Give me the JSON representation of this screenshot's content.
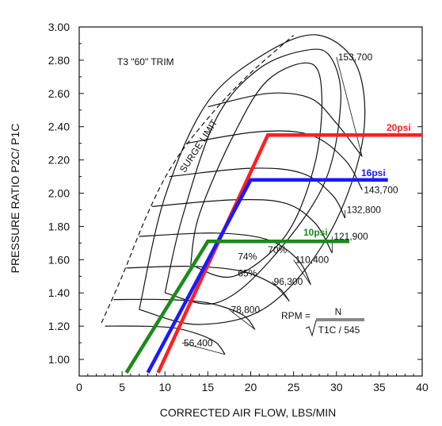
{
  "chart_data": {
    "type": "line",
    "title": "T3 \"60\" TRIM",
    "xlabel": "CORRECTED AIR FLOW, LBS/MIN",
    "ylabel": "PRESSURE RATIO P2C/ P1C",
    "xlim": [
      0,
      40
    ],
    "ylim": [
      0.9,
      3.0
    ],
    "x_ticks": [
      "0",
      "5",
      "10",
      "15",
      "20",
      "25",
      "30",
      "35",
      "40"
    ],
    "y_ticks": [
      "1.00",
      "1.20",
      "1.40",
      "1.60",
      "1.80",
      "2.00",
      "2.20",
      "2.40",
      "2.60",
      "2.80",
      "3.00"
    ],
    "grid": false,
    "surge_label": "SURGE LIMIT",
    "surge_line": [
      [
        2.6,
        1.22
      ],
      [
        5,
        1.5
      ],
      [
        8,
        1.88
      ],
      [
        11,
        2.18
      ],
      [
        15,
        2.45
      ],
      [
        19.5,
        2.7
      ],
      [
        25,
        2.95
      ]
    ],
    "speed_lines": [
      {
        "name": "56,400",
        "label_at": [
          12,
          1.08
        ],
        "points": [
          [
            3,
            1.2
          ],
          [
            7,
            1.2
          ],
          [
            11,
            1.19
          ],
          [
            14,
            1.15
          ],
          [
            16,
            1.1
          ],
          [
            17,
            1.03
          ]
        ]
      },
      {
        "name": "78,800",
        "label_at": [
          17.5,
          1.28
        ],
        "points": [
          [
            4,
            1.36
          ],
          [
            10,
            1.36
          ],
          [
            15,
            1.34
          ],
          [
            19,
            1.27
          ],
          [
            20.5,
            1.18
          ]
        ]
      },
      {
        "name": "96,300",
        "label_at": [
          22.5,
          1.45
        ],
        "points": [
          [
            5.5,
            1.55
          ],
          [
            13,
            1.56
          ],
          [
            19,
            1.53
          ],
          [
            23,
            1.44
          ],
          [
            24.5,
            1.35
          ]
        ]
      },
      {
        "name": "110,400",
        "label_at": [
          25,
          1.58
        ],
        "points": [
          [
            7,
            1.74
          ],
          [
            16,
            1.76
          ],
          [
            22,
            1.72
          ],
          [
            25.5,
            1.6
          ],
          [
            27,
            1.45
          ]
        ]
      },
      {
        "name": "121,900",
        "label_at": [
          29.5,
          1.72
        ],
        "points": [
          [
            8.5,
            1.92
          ],
          [
            18,
            1.96
          ],
          [
            24,
            1.94
          ],
          [
            27.5,
            1.82
          ],
          [
            29.5,
            1.64
          ]
        ]
      },
      {
        "name": "132,800",
        "label_at": [
          31,
          1.88
        ],
        "points": [
          [
            10.5,
            2.1
          ],
          [
            20,
            2.15
          ],
          [
            26,
            2.12
          ],
          [
            29.5,
            1.99
          ],
          [
            31,
            1.85
          ]
        ]
      },
      {
        "name": "143,700",
        "label_at": [
          33,
          2.0
        ],
        "points": [
          [
            12.5,
            2.3
          ],
          [
            21,
            2.37
          ],
          [
            27,
            2.35
          ],
          [
            31,
            2.2
          ],
          [
            33,
            2.02
          ]
        ]
      },
      {
        "name": "153,700",
        "label_at": [
          30,
          2.8
        ],
        "points": [
          [
            15,
            2.52
          ],
          [
            22,
            2.6
          ],
          [
            27,
            2.57
          ],
          [
            30,
            2.42
          ],
          [
            33,
            2.22
          ]
        ]
      }
    ],
    "rpm_formula": {
      "prefix": "RPM =",
      "numerator": "N",
      "denominator": "T1C / 545"
    },
    "efficiency_islands": [
      {
        "label": "74%",
        "label_at": [
          18.5,
          1.6
        ],
        "points": [
          [
            13,
            1.57
          ],
          [
            18,
            1.5
          ],
          [
            24,
            1.74
          ],
          [
            27.4,
            2.16
          ],
          [
            28.3,
            2.58
          ],
          [
            27,
            2.78
          ],
          [
            22,
            2.68
          ],
          [
            18,
            2.35
          ],
          [
            14,
            1.87
          ],
          [
            13,
            1.57
          ]
        ]
      },
      {
        "label": "70%",
        "label_at": [
          22,
          1.64
        ],
        "points": [
          [
            10,
            1.4
          ],
          [
            16,
            1.34
          ],
          [
            22,
            1.58
          ],
          [
            28.5,
            2.05
          ],
          [
            30.5,
            2.55
          ],
          [
            29.3,
            2.82
          ],
          [
            26.5,
            2.86
          ],
          [
            21,
            2.75
          ],
          [
            16,
            2.45
          ],
          [
            12,
            1.85
          ],
          [
            10,
            1.4
          ]
        ]
      },
      {
        "label": "65%",
        "label_at": [
          18.5,
          1.5
        ],
        "points": [
          [
            7,
            1.3
          ],
          [
            14,
            1.21
          ],
          [
            22,
            1.32
          ],
          [
            29,
            1.74
          ],
          [
            33,
            2.3
          ],
          [
            32.5,
            2.75
          ],
          [
            28,
            2.95
          ],
          [
            22,
            2.85
          ],
          [
            15,
            2.55
          ],
          [
            10,
            1.98
          ],
          [
            7,
            1.3
          ]
        ]
      }
    ],
    "series": [
      {
        "name": "20psi",
        "color": "#ff2020",
        "points": [
          [
            9.2,
            0.92
          ],
          [
            22,
            2.35
          ],
          [
            40,
            2.35
          ]
        ]
      },
      {
        "name": "16psi",
        "color": "#1a1aff",
        "points": [
          [
            8,
            0.92
          ],
          [
            20,
            2.08
          ],
          [
            36,
            2.08
          ]
        ]
      },
      {
        "name": "10psi",
        "color": "#1a8a1a",
        "points": [
          [
            5.5,
            0.92
          ],
          [
            15,
            1.71
          ],
          [
            31.5,
            1.71
          ]
        ]
      }
    ]
  }
}
